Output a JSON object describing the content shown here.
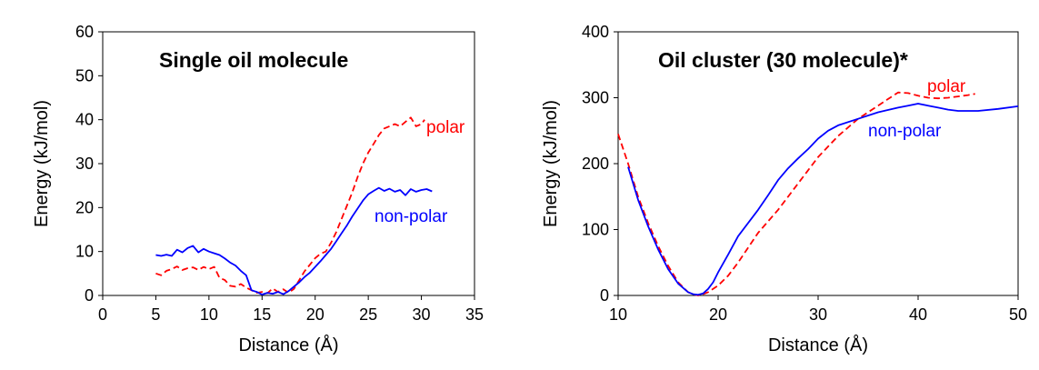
{
  "chart_data": [
    {
      "type": "line",
      "title": "Single oil molecule",
      "xlabel": "Distance (Å)",
      "ylabel": "Energy (kJ/mol)",
      "xlim": [
        0,
        35
      ],
      "ylim": [
        0,
        60
      ],
      "xticks": [
        0,
        5,
        10,
        15,
        20,
        25,
        30,
        35
      ],
      "yticks": [
        0,
        10,
        20,
        30,
        40,
        50,
        60
      ],
      "grid": false,
      "legend": "inline labels",
      "series": [
        {
          "name": "polar",
          "color": "#ff0000",
          "dash": "dashed",
          "x": [
            5.0,
            5.5,
            6.0,
            6.5,
            7.0,
            7.5,
            8.0,
            8.5,
            9.0,
            9.5,
            10.0,
            10.5,
            11.0,
            11.5,
            12.0,
            12.5,
            13.0,
            13.5,
            14.0,
            14.5,
            15.0,
            15.5,
            16.0,
            16.5,
            17.0,
            17.5,
            18.0,
            18.5,
            19.0,
            19.5,
            20.0,
            20.5,
            21.0,
            21.5,
            22.0,
            22.5,
            23.0,
            23.5,
            24.0,
            24.5,
            25.0,
            25.5,
            26.0,
            26.5,
            27.0,
            27.5,
            28.0,
            28.5,
            29.0,
            29.5,
            30.0,
            30.3
          ],
          "y": [
            5.0,
            4.6,
            5.6,
            6.0,
            6.6,
            5.8,
            6.2,
            6.4,
            5.8,
            6.5,
            6.0,
            6.5,
            4.0,
            3.5,
            2.2,
            2.0,
            2.6,
            1.8,
            1.2,
            0.6,
            0.8,
            0.5,
            1.6,
            0.8,
            1.4,
            0.6,
            1.5,
            3.5,
            5.5,
            7.0,
            8.5,
            9.5,
            10.0,
            12.0,
            14.5,
            17.5,
            20.5,
            23.5,
            27.0,
            30.0,
            32.5,
            34.5,
            36.5,
            38.0,
            38.5,
            39.0,
            38.5,
            39.5,
            40.5,
            38.5,
            39.0,
            40.0
          ]
        },
        {
          "name": "non-polar",
          "color": "#0000ff",
          "dash": "solid",
          "x": [
            5.0,
            5.5,
            6.0,
            6.5,
            7.0,
            7.5,
            8.0,
            8.5,
            9.0,
            9.5,
            10.0,
            10.5,
            11.0,
            11.5,
            12.0,
            12.5,
            13.0,
            13.5,
            14.0,
            14.5,
            15.0,
            15.5,
            16.0,
            16.5,
            17.0,
            17.5,
            18.0,
            18.5,
            19.0,
            19.5,
            20.0,
            20.5,
            21.0,
            21.5,
            22.0,
            22.5,
            23.0,
            23.5,
            24.0,
            24.5,
            25.0,
            25.5,
            26.0,
            26.5,
            27.0,
            27.5,
            28.0,
            28.5,
            29.0,
            29.5,
            30.0,
            30.5,
            31.0
          ],
          "y": [
            9.2,
            9.0,
            9.3,
            9.0,
            10.4,
            9.8,
            10.8,
            11.3,
            9.8,
            10.6,
            10.0,
            9.6,
            9.2,
            8.4,
            7.5,
            6.8,
            5.6,
            4.6,
            1.2,
            0.8,
            0.2,
            0.6,
            0.4,
            0.8,
            0.3,
            1.0,
            2.0,
            3.0,
            4.2,
            5.2,
            6.5,
            7.8,
            9.2,
            10.6,
            12.4,
            14.2,
            16.0,
            18.0,
            19.8,
            21.6,
            23.0,
            23.8,
            24.5,
            23.8,
            24.3,
            23.6,
            24.0,
            22.8,
            24.2,
            23.6,
            24.0,
            24.2,
            23.7
          ]
        }
      ]
    },
    {
      "type": "line",
      "title": "Oil cluster (30 molecule)*",
      "xlabel": "Distance (Å)",
      "ylabel": "Energy (kJ/mol)",
      "xlim": [
        10,
        50
      ],
      "ylim": [
        0,
        400
      ],
      "xticks": [
        10,
        20,
        30,
        40,
        50
      ],
      "yticks": [
        0,
        100,
        200,
        300,
        400
      ],
      "grid": false,
      "legend": "inline labels",
      "series": [
        {
          "name": "polar",
          "color": "#ff0000",
          "dash": "dashed",
          "x": [
            10.0,
            11.0,
            12.0,
            13.0,
            14.0,
            15.0,
            16.0,
            17.0,
            17.5,
            18.0,
            18.5,
            19.0,
            20.0,
            21.0,
            22.0,
            24.0,
            26.0,
            28.0,
            30.0,
            32.0,
            34.0,
            36.0,
            37.0,
            38.0,
            39.0,
            40.0,
            41.0,
            42.0,
            43.0,
            44.0,
            45.0,
            45.7
          ],
          "y": [
            245,
            200,
            150,
            110,
            75,
            45,
            20,
            5,
            2,
            0,
            2,
            5,
            15,
            30,
            50,
            95,
            130,
            170,
            210,
            242,
            268,
            288,
            298,
            308,
            307,
            303,
            300,
            299,
            300,
            302,
            304,
            306
          ]
        },
        {
          "name": "non-polar",
          "color": "#0000ff",
          "dash": "solid",
          "x": [
            11.0,
            12.0,
            13.0,
            14.0,
            15.0,
            16.0,
            17.0,
            17.5,
            18.0,
            18.5,
            19.0,
            19.5,
            20.0,
            21.0,
            22.0,
            24.0,
            25.0,
            26.0,
            27.0,
            28.0,
            29.0,
            30.0,
            31.0,
            32.0,
            34.0,
            36.0,
            38.0,
            39.0,
            40.0,
            41.0,
            42.0,
            43.0,
            44.0,
            46.0,
            48.0,
            50.0
          ],
          "y": [
            195,
            145,
            105,
            70,
            40,
            18,
            5,
            2,
            1,
            3,
            10,
            20,
            35,
            62,
            90,
            130,
            152,
            175,
            193,
            208,
            222,
            238,
            250,
            258,
            268,
            278,
            285,
            288,
            291,
            288,
            285,
            282,
            280,
            280,
            283,
            287
          ]
        }
      ]
    }
  ]
}
